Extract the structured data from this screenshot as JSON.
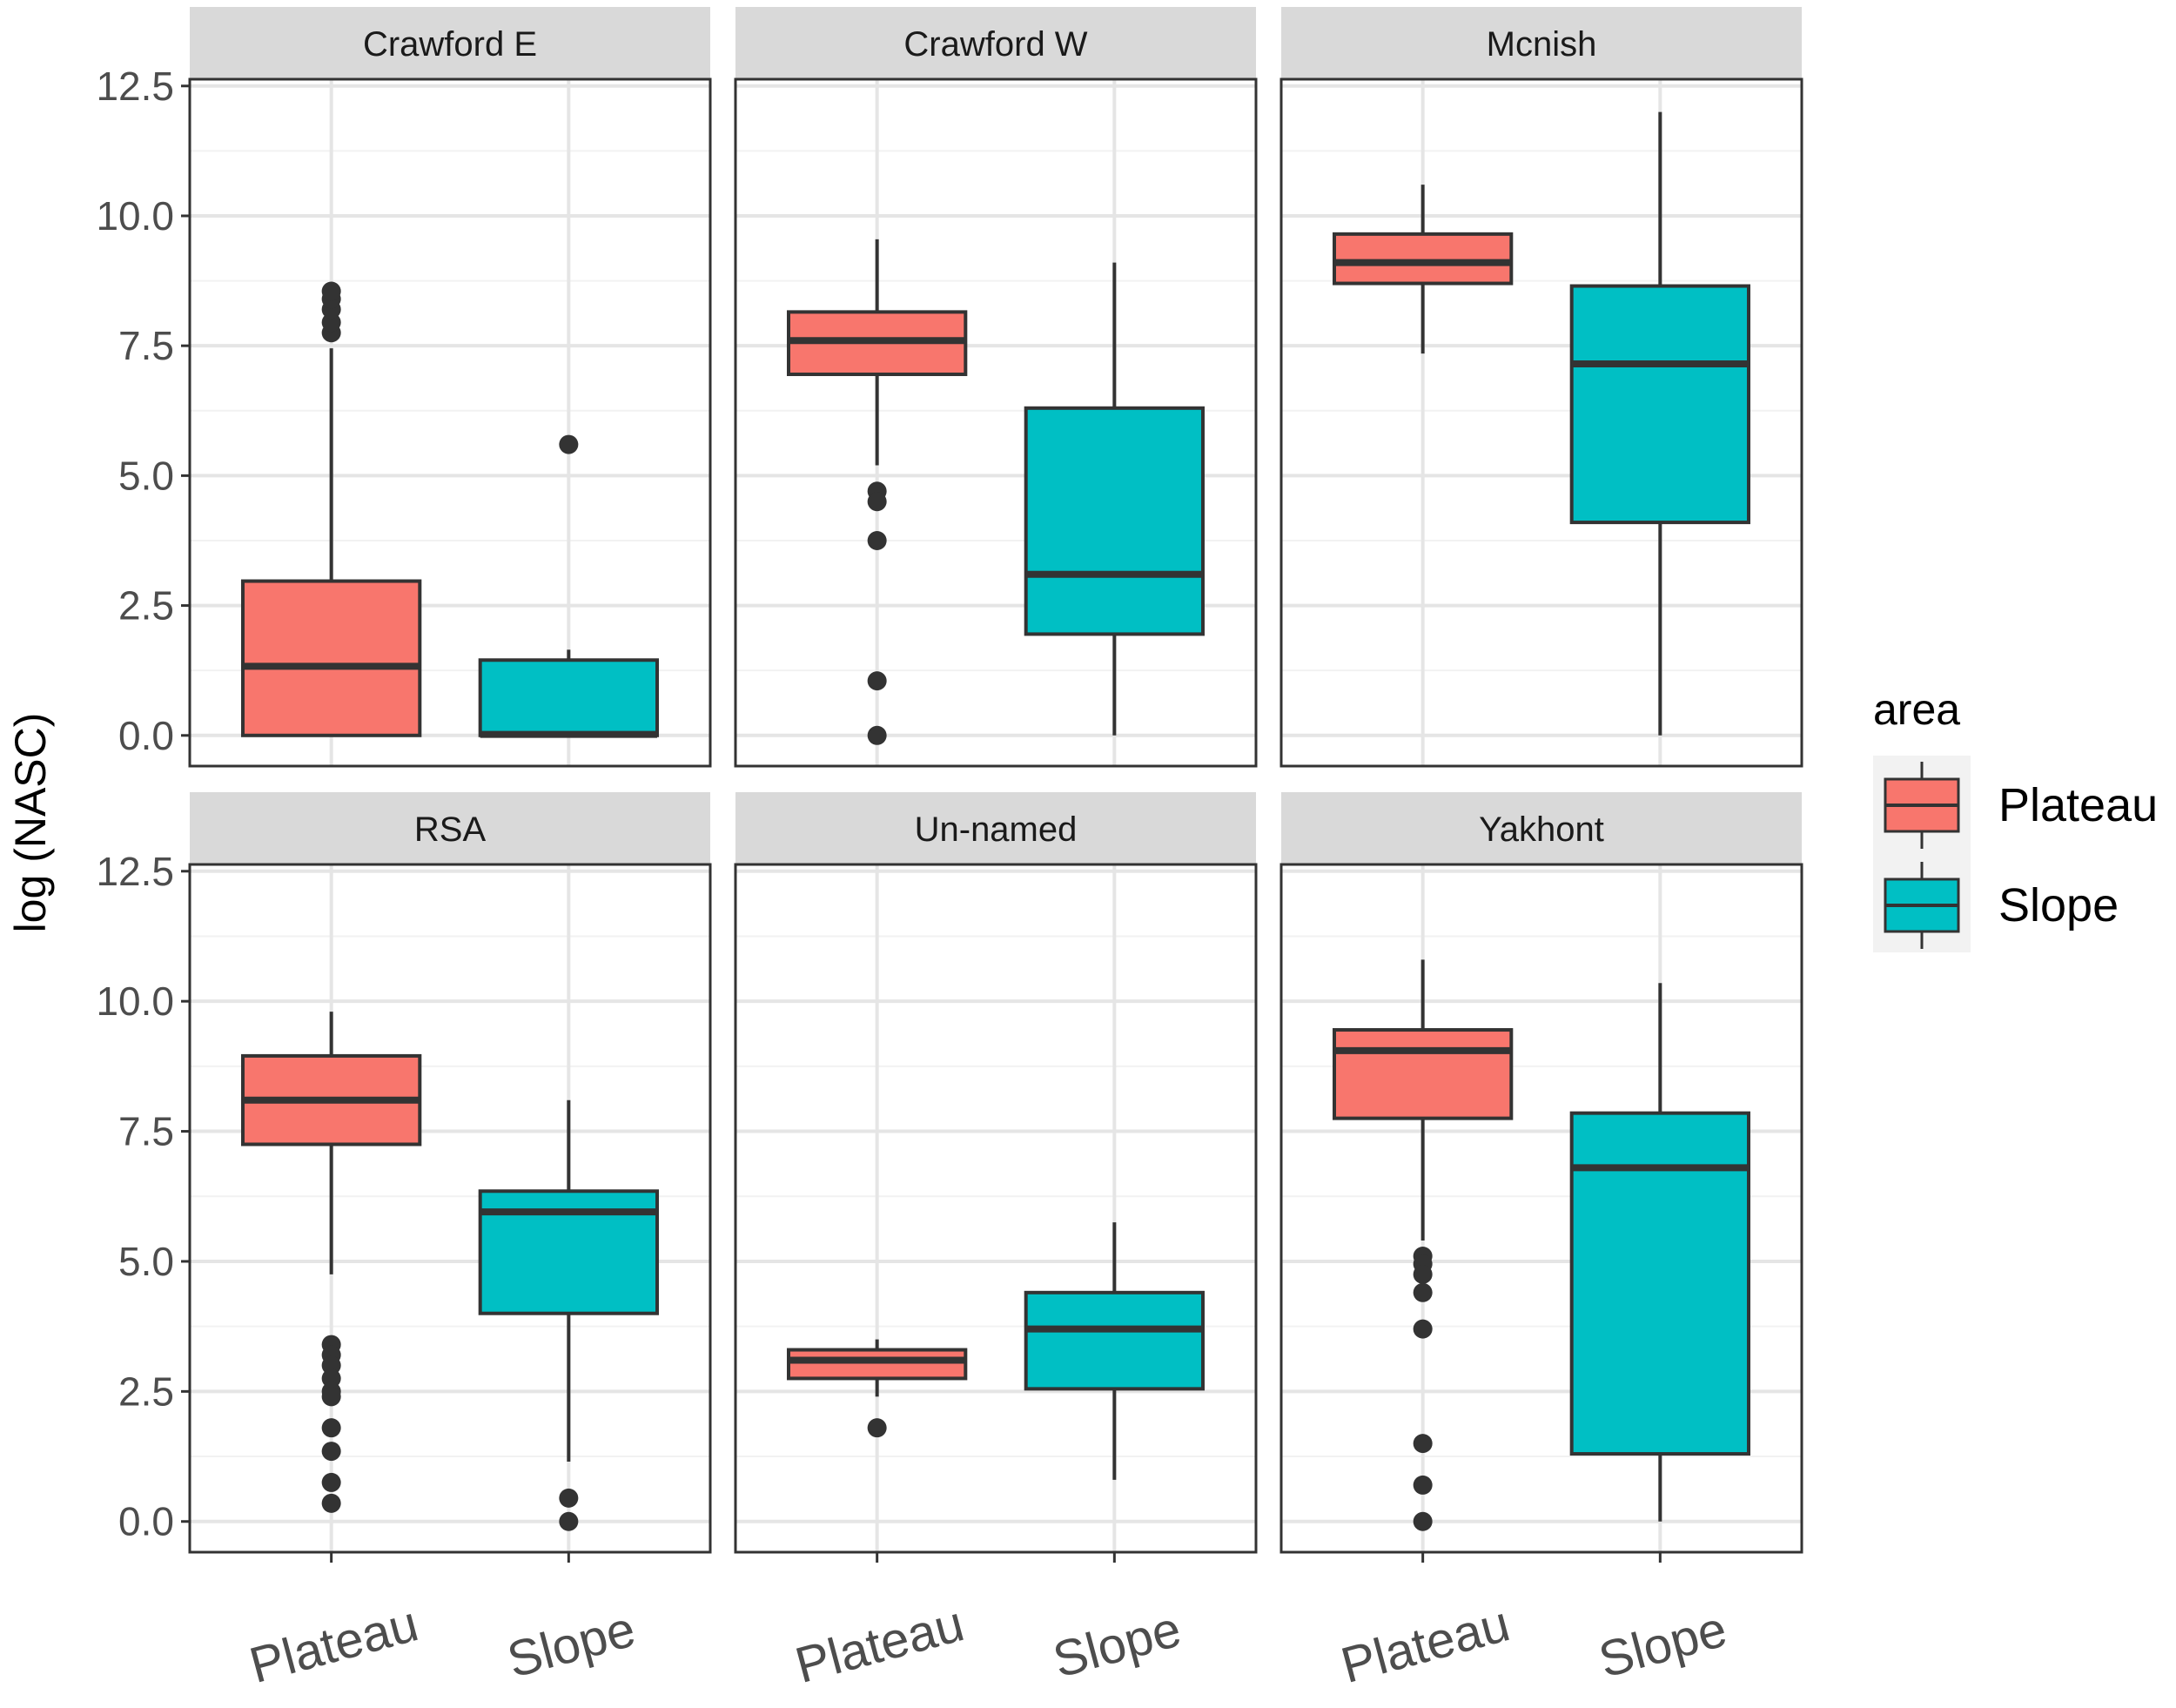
{
  "chart_data": {
    "type": "boxplot",
    "title": "",
    "xlabel": "",
    "ylabel": "log (NASC)",
    "ylim": [
      -0.59,
      12.63
    ],
    "yticks": [
      "0.0",
      "2.5",
      "5.0",
      "7.5",
      "10.0",
      "12.5"
    ],
    "ytick_values": [
      0,
      2.5,
      5,
      7.5,
      10,
      12.5
    ],
    "categories": [
      "Plateau",
      "Slope"
    ],
    "grid": true,
    "legend": {
      "title": "area",
      "position": "right",
      "entries": [
        {
          "label": "Plateau",
          "color": "#F8766D"
        },
        {
          "label": "Slope",
          "color": "#00BFC4"
        }
      ]
    },
    "panels": [
      {
        "name": "Crawford E",
        "boxes": [
          {
            "category": "Plateau",
            "low": 0,
            "q1": 0,
            "median": 1.33,
            "q3": 2.97,
            "high": 7.45,
            "outliers": [
              7.75,
              7.95,
              8.2,
              8.4,
              8.55
            ]
          },
          {
            "category": "Slope",
            "low": 0,
            "q1": 0,
            "median": 0.02,
            "q3": 1.45,
            "high": 1.65,
            "outliers": [
              5.6
            ]
          }
        ]
      },
      {
        "name": "Crawford W",
        "boxes": [
          {
            "category": "Plateau",
            "low": 5.2,
            "q1": 6.95,
            "median": 7.6,
            "q3": 8.15,
            "high": 9.55,
            "outliers": [
              4.7,
              4.5,
              3.75,
              1.05,
              0
            ]
          },
          {
            "category": "Slope",
            "low": 0,
            "q1": 1.95,
            "median": 3.1,
            "q3": 6.3,
            "high": 9.1,
            "outliers": []
          }
        ]
      },
      {
        "name": "Mcnish",
        "boxes": [
          {
            "category": "Plateau",
            "low": 7.35,
            "q1": 8.7,
            "median": 9.1,
            "q3": 9.65,
            "high": 10.6,
            "outliers": []
          },
          {
            "category": "Slope",
            "low": 0,
            "q1": 4.1,
            "median": 7.15,
            "q3": 8.65,
            "high": 12.0,
            "outliers": []
          }
        ]
      },
      {
        "name": "RSA",
        "boxes": [
          {
            "category": "Plateau",
            "low": 4.75,
            "q1": 7.25,
            "median": 8.1,
            "q3": 8.95,
            "high": 9.8,
            "outliers": [
              3.4,
              3.2,
              3.0,
              2.75,
              2.5,
              2.4,
              1.8,
              1.35,
              0.75,
              0.35
            ]
          },
          {
            "category": "Slope",
            "low": 1.15,
            "q1": 4.0,
            "median": 5.95,
            "q3": 6.35,
            "high": 8.1,
            "outliers": [
              0.45,
              0
            ]
          }
        ]
      },
      {
        "name": "Un-named",
        "boxes": [
          {
            "category": "Plateau",
            "low": 2.4,
            "q1": 2.75,
            "median": 3.1,
            "q3": 3.3,
            "high": 3.5,
            "outliers": [
              1.8
            ]
          },
          {
            "category": "Slope",
            "low": 0.8,
            "q1": 2.55,
            "median": 3.7,
            "q3": 4.4,
            "high": 5.75,
            "outliers": []
          }
        ]
      },
      {
        "name": "Yakhont",
        "boxes": [
          {
            "category": "Plateau",
            "low": 5.4,
            "q1": 7.75,
            "median": 9.05,
            "q3": 9.45,
            "high": 10.8,
            "outliers": [
              5.1,
              4.95,
              4.75,
              4.4,
              3.7,
              1.5,
              0.7,
              0
            ]
          },
          {
            "category": "Slope",
            "low": 0,
            "q1": 1.3,
            "median": 6.8,
            "q3": 7.85,
            "high": 10.35,
            "outliers": []
          }
        ]
      }
    ]
  }
}
